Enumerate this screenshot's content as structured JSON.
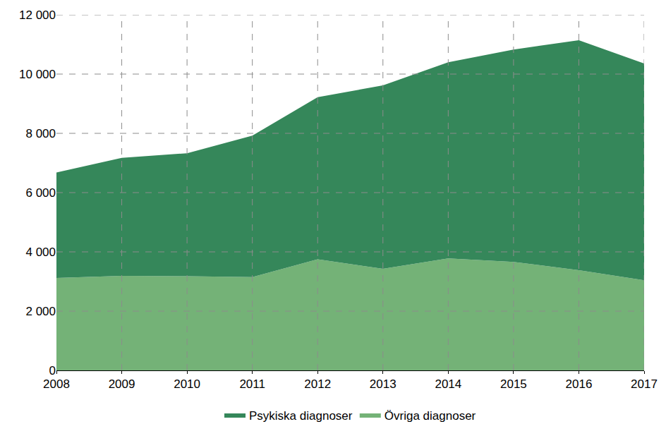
{
  "chart_data": {
    "type": "area",
    "stacked": true,
    "x": [
      2008,
      2009,
      2010,
      2011,
      2012,
      2013,
      2014,
      2015,
      2016,
      2017
    ],
    "series": [
      {
        "name": "Psykiska diagnoser",
        "color": "#35875a",
        "values": [
          3560,
          3980,
          4150,
          4770,
          5470,
          6190,
          6620,
          7170,
          7760,
          7320
        ]
      },
      {
        "name": "Övriga diagnoser",
        "color": "#74b277",
        "values": [
          3120,
          3190,
          3180,
          3150,
          3750,
          3430,
          3780,
          3660,
          3380,
          3040
        ]
      }
    ],
    "xlim": [
      2008,
      2017
    ],
    "xticks": [
      2008,
      2009,
      2010,
      2011,
      2012,
      2013,
      2014,
      2015,
      2016,
      2017
    ],
    "ylim": [
      0,
      12000
    ],
    "yticks": [
      0,
      {
        "value": 2000,
        "label": "2 000"
      },
      {
        "value": 4000,
        "label": "4 000"
      },
      {
        "value": 6000,
        "label": "6 000"
      },
      {
        "value": 8000,
        "label": "8 000"
      },
      {
        "value": 10000,
        "label": "10 000"
      },
      {
        "value": 12000,
        "label": "12 000"
      }
    ],
    "grid": true,
    "legend": "bottom"
  }
}
